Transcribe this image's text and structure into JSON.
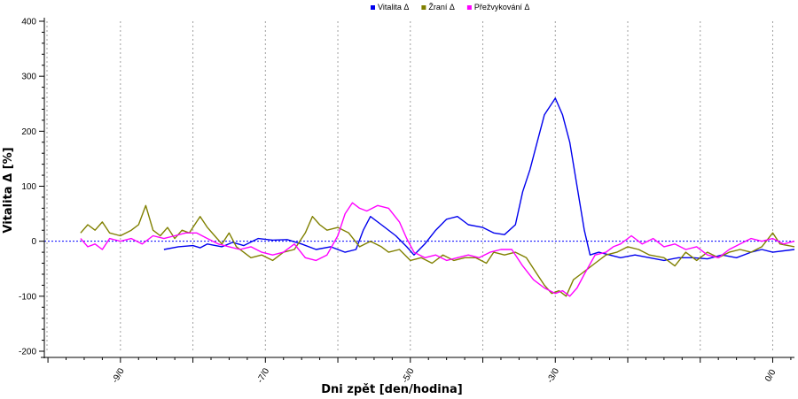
{
  "chart_data": {
    "type": "line",
    "xlabel": "Dni zpět [den/hodina]",
    "ylabel": "Vitalita Δ [%]",
    "xlim": [
      -10.05,
      0.3
    ],
    "ylim": [
      -200,
      400
    ],
    "yticks": [
      -200,
      -100,
      0,
      100,
      200,
      300,
      400
    ],
    "xticks": [
      {
        "x": -9,
        "label": "-9/0"
      },
      {
        "x": -7,
        "label": "-7/0"
      },
      {
        "x": -5,
        "label": "-5/0"
      },
      {
        "x": -3,
        "label": "-3/0"
      },
      {
        "x": 0,
        "label": "0/0"
      }
    ],
    "x_grid_lines": [
      -9,
      -8,
      -7,
      -6,
      -5,
      -4,
      -3,
      -2,
      -1,
      0
    ],
    "legend_position": "top-center",
    "reference_line": {
      "y": 0,
      "color": "#0000ff",
      "style": "dotted"
    },
    "series": [
      {
        "name": "Vitalita Δ",
        "color": "#0000ee",
        "points": [
          [
            -8.4,
            -15
          ],
          [
            -8.2,
            -10
          ],
          [
            -8.0,
            -8
          ],
          [
            -7.9,
            -12
          ],
          [
            -7.8,
            -5
          ],
          [
            -7.6,
            -10
          ],
          [
            -7.45,
            -2
          ],
          [
            -7.3,
            -8
          ],
          [
            -7.1,
            5
          ],
          [
            -6.9,
            2
          ],
          [
            -6.7,
            3
          ],
          [
            -6.5,
            -5
          ],
          [
            -6.3,
            -15
          ],
          [
            -6.1,
            -10
          ],
          [
            -5.9,
            -20
          ],
          [
            -5.75,
            -15
          ],
          [
            -5.65,
            20
          ],
          [
            -5.55,
            45
          ],
          [
            -5.4,
            30
          ],
          [
            -5.2,
            10
          ],
          [
            -5.05,
            -10
          ],
          [
            -4.95,
            -25
          ],
          [
            -4.8,
            -5
          ],
          [
            -4.65,
            20
          ],
          [
            -4.5,
            40
          ],
          [
            -4.35,
            45
          ],
          [
            -4.2,
            30
          ],
          [
            -4.0,
            25
          ],
          [
            -3.85,
            15
          ],
          [
            -3.7,
            12
          ],
          [
            -3.55,
            30
          ],
          [
            -3.45,
            90
          ],
          [
            -3.35,
            130
          ],
          [
            -3.25,
            180
          ],
          [
            -3.15,
            230
          ],
          [
            -3.05,
            250
          ],
          [
            -3.0,
            260
          ],
          [
            -2.9,
            230
          ],
          [
            -2.8,
            180
          ],
          [
            -2.7,
            100
          ],
          [
            -2.6,
            20
          ],
          [
            -2.52,
            -25
          ],
          [
            -2.4,
            -20
          ],
          [
            -2.25,
            -25
          ],
          [
            -2.1,
            -30
          ],
          [
            -1.9,
            -25
          ],
          [
            -1.7,
            -30
          ],
          [
            -1.5,
            -35
          ],
          [
            -1.3,
            -30
          ],
          [
            -1.1,
            -30
          ],
          [
            -0.9,
            -32
          ],
          [
            -0.7,
            -25
          ],
          [
            -0.5,
            -30
          ],
          [
            -0.3,
            -20
          ],
          [
            -0.15,
            -15
          ],
          [
            0.0,
            -20
          ],
          [
            0.3,
            -15
          ]
        ]
      },
      {
        "name": "Žraní Δ",
        "color": "#808000",
        "points": [
          [
            -9.55,
            15
          ],
          [
            -9.45,
            30
          ],
          [
            -9.35,
            20
          ],
          [
            -9.25,
            35
          ],
          [
            -9.15,
            15
          ],
          [
            -9.0,
            10
          ],
          [
            -8.85,
            20
          ],
          [
            -8.75,
            30
          ],
          [
            -8.65,
            65
          ],
          [
            -8.55,
            20
          ],
          [
            -8.45,
            10
          ],
          [
            -8.35,
            25
          ],
          [
            -8.25,
            5
          ],
          [
            -8.15,
            20
          ],
          [
            -8.05,
            15
          ],
          [
            -7.9,
            45
          ],
          [
            -7.8,
            25
          ],
          [
            -7.7,
            10
          ],
          [
            -7.6,
            -5
          ],
          [
            -7.5,
            15
          ],
          [
            -7.4,
            -10
          ],
          [
            -7.3,
            -20
          ],
          [
            -7.2,
            -30
          ],
          [
            -7.05,
            -25
          ],
          [
            -6.9,
            -35
          ],
          [
            -6.75,
            -20
          ],
          [
            -6.6,
            -15
          ],
          [
            -6.45,
            15
          ],
          [
            -6.35,
            45
          ],
          [
            -6.25,
            30
          ],
          [
            -6.15,
            20
          ],
          [
            -6.0,
            25
          ],
          [
            -5.85,
            15
          ],
          [
            -5.7,
            -10
          ],
          [
            -5.55,
            0
          ],
          [
            -5.4,
            -10
          ],
          [
            -5.3,
            -20
          ],
          [
            -5.15,
            -15
          ],
          [
            -5.0,
            -35
          ],
          [
            -4.85,
            -30
          ],
          [
            -4.7,
            -40
          ],
          [
            -4.55,
            -25
          ],
          [
            -4.4,
            -35
          ],
          [
            -4.25,
            -30
          ],
          [
            -4.1,
            -30
          ],
          [
            -3.95,
            -40
          ],
          [
            -3.85,
            -20
          ],
          [
            -3.7,
            -25
          ],
          [
            -3.55,
            -20
          ],
          [
            -3.4,
            -30
          ],
          [
            -3.25,
            -60
          ],
          [
            -3.15,
            -80
          ],
          [
            -3.05,
            -95
          ],
          [
            -2.95,
            -90
          ],
          [
            -2.85,
            -100
          ],
          [
            -2.75,
            -70
          ],
          [
            -2.65,
            -60
          ],
          [
            -2.55,
            -50
          ],
          [
            -2.45,
            -40
          ],
          [
            -2.3,
            -25
          ],
          [
            -2.15,
            -20
          ],
          [
            -2.0,
            -10
          ],
          [
            -1.85,
            -15
          ],
          [
            -1.7,
            -25
          ],
          [
            -1.5,
            -30
          ],
          [
            -1.35,
            -45
          ],
          [
            -1.2,
            -20
          ],
          [
            -1.05,
            -35
          ],
          [
            -0.9,
            -20
          ],
          [
            -0.75,
            -30
          ],
          [
            -0.6,
            -20
          ],
          [
            -0.45,
            -15
          ],
          [
            -0.3,
            -20
          ],
          [
            -0.15,
            -10
          ],
          [
            0.0,
            15
          ],
          [
            0.1,
            -5
          ],
          [
            0.3,
            -10
          ]
        ]
      },
      {
        "name": "Přežvykování Δ",
        "color": "#ff00ff",
        "points": [
          [
            -9.55,
            5
          ],
          [
            -9.45,
            -10
          ],
          [
            -9.35,
            -5
          ],
          [
            -9.25,
            -15
          ],
          [
            -9.15,
            5
          ],
          [
            -9.0,
            0
          ],
          [
            -8.85,
            5
          ],
          [
            -8.7,
            -5
          ],
          [
            -8.55,
            10
          ],
          [
            -8.4,
            5
          ],
          [
            -8.25,
            10
          ],
          [
            -8.1,
            15
          ],
          [
            -7.95,
            15
          ],
          [
            -7.8,
            5
          ],
          [
            -7.65,
            -5
          ],
          [
            -7.5,
            -10
          ],
          [
            -7.35,
            -15
          ],
          [
            -7.2,
            -10
          ],
          [
            -7.05,
            -20
          ],
          [
            -6.9,
            -25
          ],
          [
            -6.75,
            -20
          ],
          [
            -6.6,
            -5
          ],
          [
            -6.45,
            -30
          ],
          [
            -6.3,
            -35
          ],
          [
            -6.15,
            -25
          ],
          [
            -6.0,
            10
          ],
          [
            -5.9,
            50
          ],
          [
            -5.8,
            70
          ],
          [
            -5.7,
            60
          ],
          [
            -5.6,
            55
          ],
          [
            -5.45,
            65
          ],
          [
            -5.3,
            60
          ],
          [
            -5.15,
            35
          ],
          [
            -5.05,
            5
          ],
          [
            -4.95,
            -20
          ],
          [
            -4.8,
            -30
          ],
          [
            -4.65,
            -25
          ],
          [
            -4.5,
            -35
          ],
          [
            -4.35,
            -30
          ],
          [
            -4.2,
            -25
          ],
          [
            -4.05,
            -30
          ],
          [
            -3.9,
            -20
          ],
          [
            -3.75,
            -15
          ],
          [
            -3.6,
            -15
          ],
          [
            -3.45,
            -45
          ],
          [
            -3.3,
            -70
          ],
          [
            -3.15,
            -85
          ],
          [
            -3.0,
            -95
          ],
          [
            -2.9,
            -90
          ],
          [
            -2.8,
            -100
          ],
          [
            -2.7,
            -85
          ],
          [
            -2.6,
            -60
          ],
          [
            -2.45,
            -25
          ],
          [
            -2.3,
            -20
          ],
          [
            -2.2,
            -10
          ],
          [
            -2.1,
            -5
          ],
          [
            -1.95,
            10
          ],
          [
            -1.8,
            -5
          ],
          [
            -1.65,
            5
          ],
          [
            -1.5,
            -10
          ],
          [
            -1.35,
            -5
          ],
          [
            -1.2,
            -15
          ],
          [
            -1.05,
            -10
          ],
          [
            -0.9,
            -25
          ],
          [
            -0.75,
            -30
          ],
          [
            -0.6,
            -15
          ],
          [
            -0.45,
            -5
          ],
          [
            -0.3,
            5
          ],
          [
            -0.15,
            0
          ],
          [
            0.0,
            5
          ],
          [
            0.15,
            -5
          ],
          [
            0.3,
            0
          ]
        ]
      }
    ]
  }
}
